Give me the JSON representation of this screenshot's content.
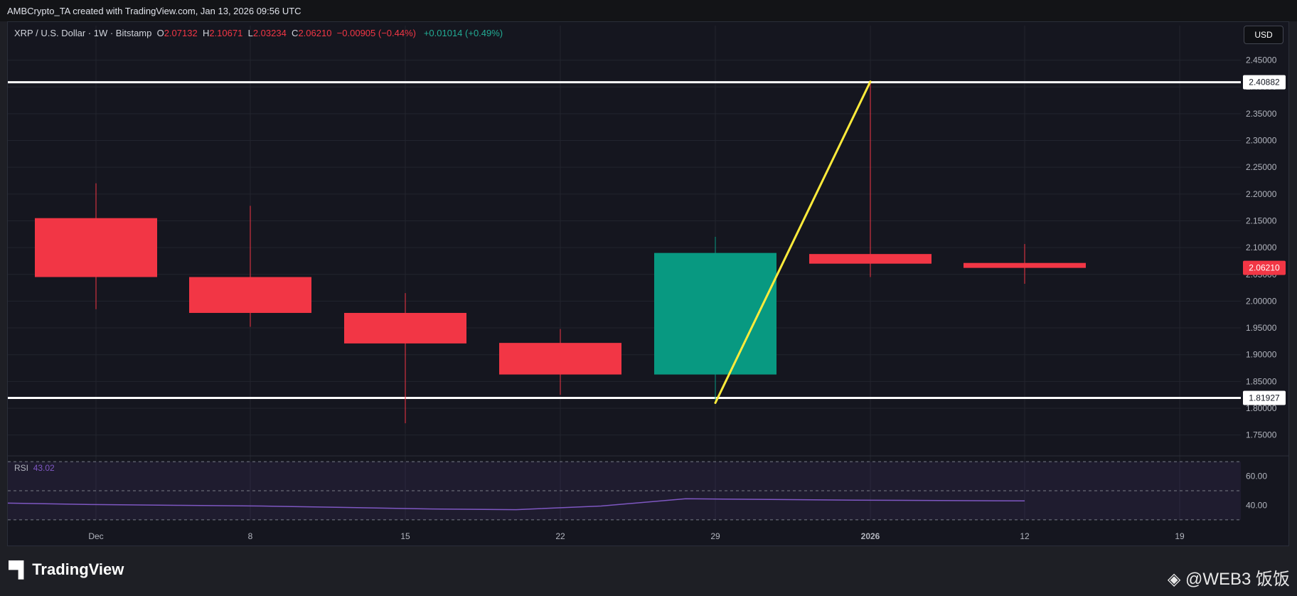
{
  "header": {
    "credit": "AMBCrypto_TA created with TradingView.com, Jan 13, 2026 09:56 UTC"
  },
  "legend": {
    "symbol": "XRP / U.S. Dollar · 1W · Bitstamp",
    "o_label": "O",
    "o_value": "2.07132",
    "h_label": "H",
    "h_value": "2.10671",
    "l_label": "L",
    "l_value": "2.03234",
    "c_label": "C",
    "c_value": "2.06210",
    "change": "−0.00905 (−0.44%)",
    "live_change": "+0.01014 (+0.49%)"
  },
  "currency_button": "USD",
  "rsi": {
    "label": "RSI",
    "value": "43.02"
  },
  "footer": {
    "brand": "TradingView",
    "watermark": "@WEB3 饭饭"
  },
  "colors": {
    "up": "#089981",
    "down": "#f23645",
    "trend": "#ffeb3b",
    "level": "#ffffff",
    "rsi": "#7e57c2"
  },
  "chart_data": {
    "type": "candlestick",
    "price_axis": {
      "ticks": [
        "1.75000",
        "1.80000",
        "1.85000",
        "1.90000",
        "1.95000",
        "2.00000",
        "2.05000",
        "2.10000",
        "2.15000",
        "2.20000",
        "2.25000",
        "2.30000",
        "2.35000",
        "2.40000",
        "2.45000"
      ],
      "ylim": [
        1.715,
        2.48
      ]
    },
    "time_axis": {
      "labels": [
        "Dec",
        "8",
        "15",
        "22",
        "29",
        "2026",
        "12",
        "19"
      ]
    },
    "candles": [
      {
        "week": "Dec",
        "open": 2.155,
        "high": 2.22,
        "low": 1.985,
        "close": 2.045
      },
      {
        "week": "8",
        "open": 2.045,
        "high": 2.178,
        "low": 1.952,
        "close": 1.978
      },
      {
        "week": "15",
        "open": 1.978,
        "high": 2.015,
        "low": 1.772,
        "close": 1.921
      },
      {
        "week": "22",
        "open": 1.922,
        "high": 1.948,
        "low": 1.825,
        "close": 1.863
      },
      {
        "week": "29",
        "open": 1.863,
        "high": 2.12,
        "low": 1.815,
        "close": 2.09
      },
      {
        "week": "2026",
        "open": 2.088,
        "high": 2.41,
        "low": 2.045,
        "close": 2.07
      },
      {
        "week": "12",
        "open": 2.07132,
        "high": 2.10671,
        "low": 2.03234,
        "close": 2.0621
      }
    ],
    "horizontal_levels": [
      {
        "price": 2.40882,
        "label": "2.40882"
      },
      {
        "price": 1.81927,
        "label": "1.81927"
      }
    ],
    "trend_line": {
      "from": {
        "week": "29",
        "price": 1.81
      },
      "to": {
        "week": "2026",
        "price": 2.41
      }
    },
    "last_price": {
      "price": 2.0621,
      "label": "2.06210"
    },
    "rsi_panel": {
      "ticks": [
        "60.00",
        "40.00"
      ],
      "ylim": [
        28,
        72
      ],
      "band": [
        30,
        70
      ],
      "mid": 50,
      "values": [
        41.5,
        40.5,
        40.0,
        39.5,
        38.5,
        37.5,
        37.0,
        39.5,
        44.5,
        44.0,
        43.5,
        43.3,
        43.02
      ]
    }
  }
}
